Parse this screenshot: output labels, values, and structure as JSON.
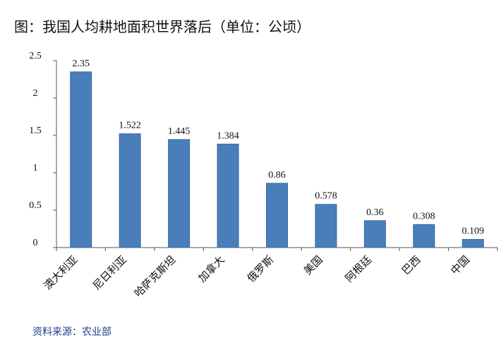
{
  "title": "图：我国人均耕地面积世界落后（单位：公顷）",
  "source": "资料来源：农业部",
  "colors": {
    "bar": "#4a7ebb",
    "bar_edge": "#3a6aa6",
    "axis": "#555555",
    "text": "#111111"
  },
  "chart_data": {
    "type": "bar",
    "categories": [
      "澳大利亚",
      "尼日利亚",
      "哈萨克斯坦",
      "加拿大",
      "俄罗斯",
      "美国",
      "阿根廷",
      "巴西",
      "中国"
    ],
    "values": [
      2.35,
      1.522,
      1.445,
      1.384,
      0.86,
      0.578,
      0.36,
      0.308,
      0.109
    ],
    "data_labels": [
      "2.35",
      "1.522",
      "1.445",
      "1.384",
      "0.86",
      "0.578",
      "0.36",
      "0.308",
      "0.109"
    ],
    "yticks": [
      "0",
      "0.5",
      "1",
      "1.5",
      "2",
      "2.5"
    ],
    "ylim": [
      0,
      2.5
    ],
    "grid": false,
    "legend": "none"
  }
}
